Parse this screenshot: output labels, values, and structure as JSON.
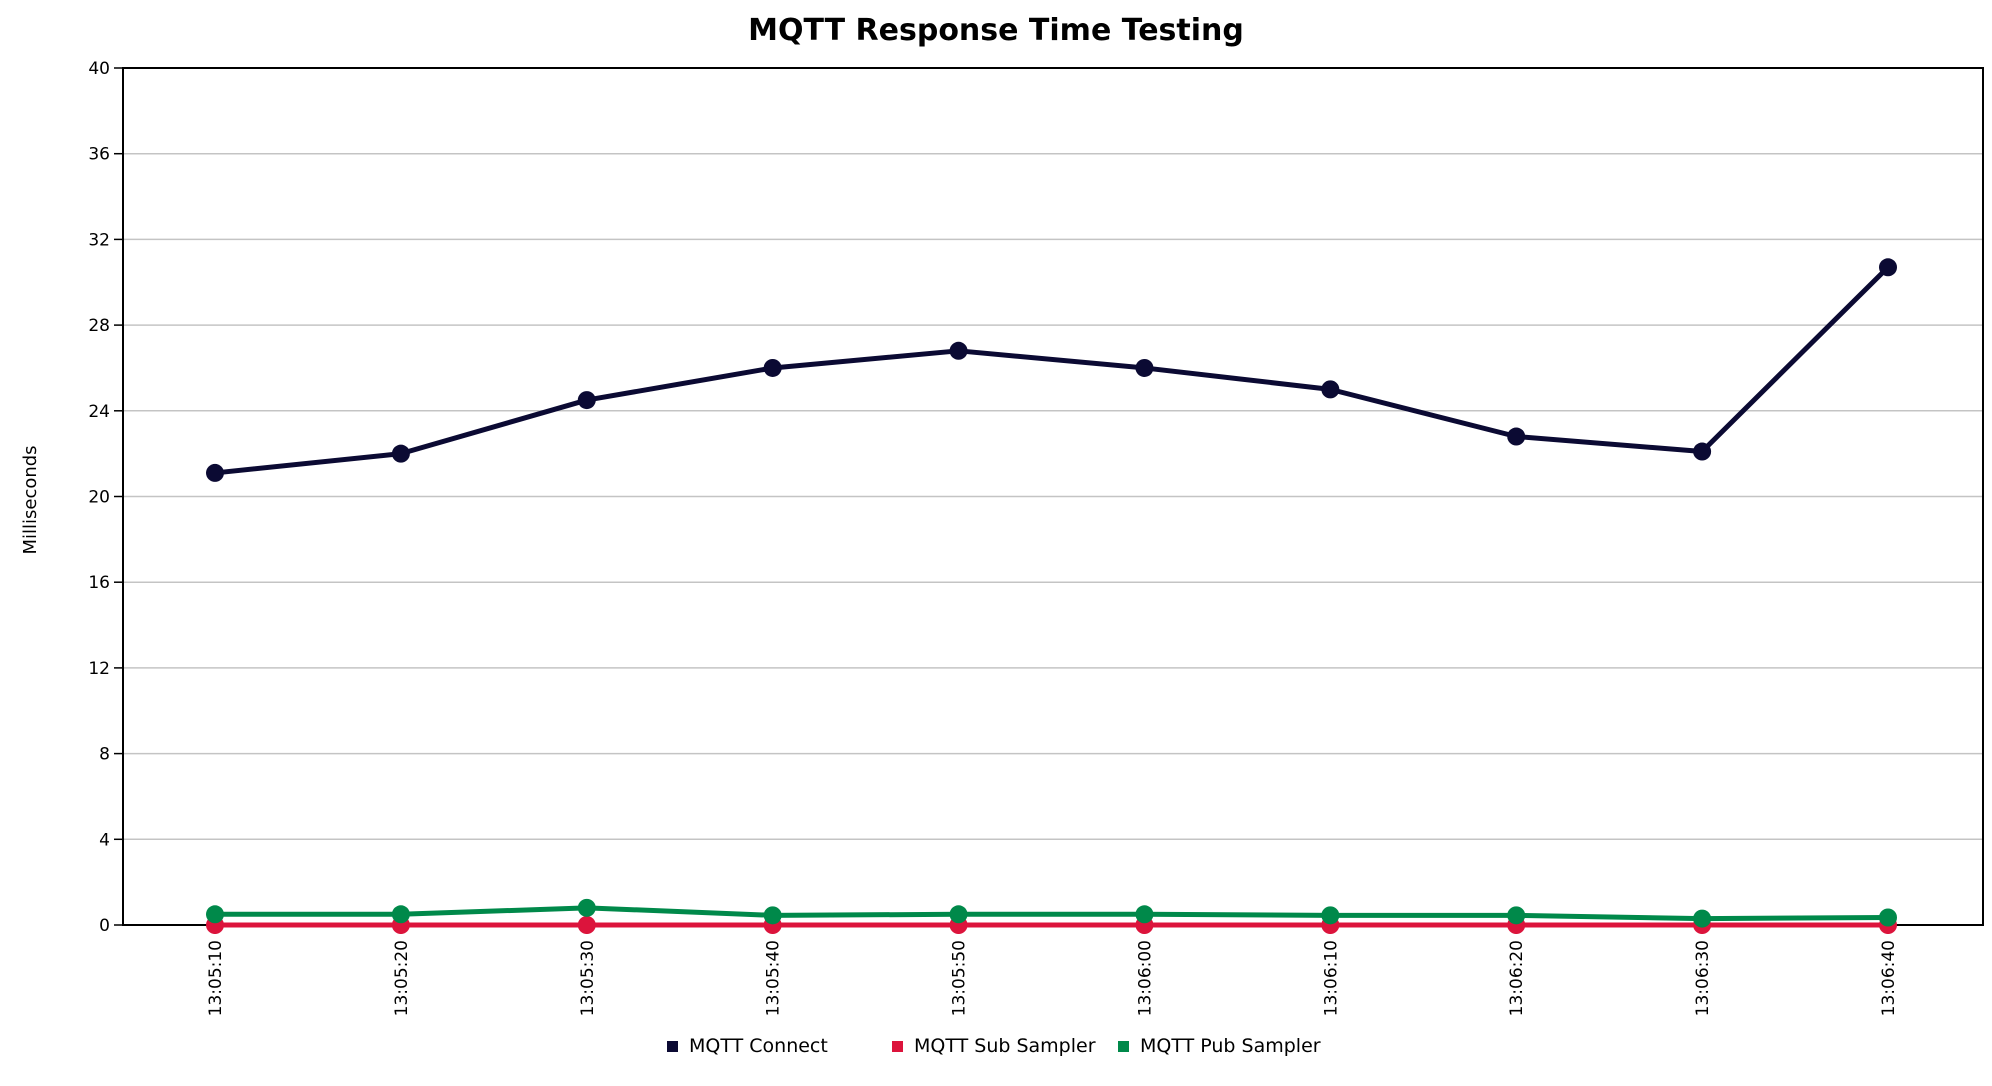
{
  "chart_data": {
    "type": "line",
    "title": "MQTT Response Time Testing",
    "xlabel": "",
    "ylabel": "Milliseconds",
    "ylim": [
      0,
      40
    ],
    "yticks": [
      0,
      4,
      8,
      12,
      16,
      20,
      24,
      28,
      32,
      36,
      40
    ],
    "categories": [
      "13:05:10",
      "13:05:20",
      "13:05:30",
      "13:05:40",
      "13:05:50",
      "13:06:00",
      "13:06:10",
      "13:06:20",
      "13:06:30",
      "13:06:40"
    ],
    "grid": true,
    "legend_position": "bottom",
    "series": [
      {
        "name": "MQTT Connect",
        "color": "#0b0a33",
        "values": [
          21.1,
          22.0,
          24.5,
          26.0,
          26.8,
          26.0,
          25.0,
          22.8,
          22.1,
          30.7
        ]
      },
      {
        "name": "MQTT Sub Sampler",
        "color": "#dc143c",
        "values": [
          0,
          0,
          0,
          0,
          0,
          0,
          0,
          0,
          0,
          0
        ]
      },
      {
        "name": "MQTT Pub Sampler",
        "color": "#00894a",
        "values": [
          0.5,
          0.5,
          0.8,
          0.45,
          0.5,
          0.5,
          0.45,
          0.45,
          0.3,
          0.35
        ]
      }
    ]
  }
}
